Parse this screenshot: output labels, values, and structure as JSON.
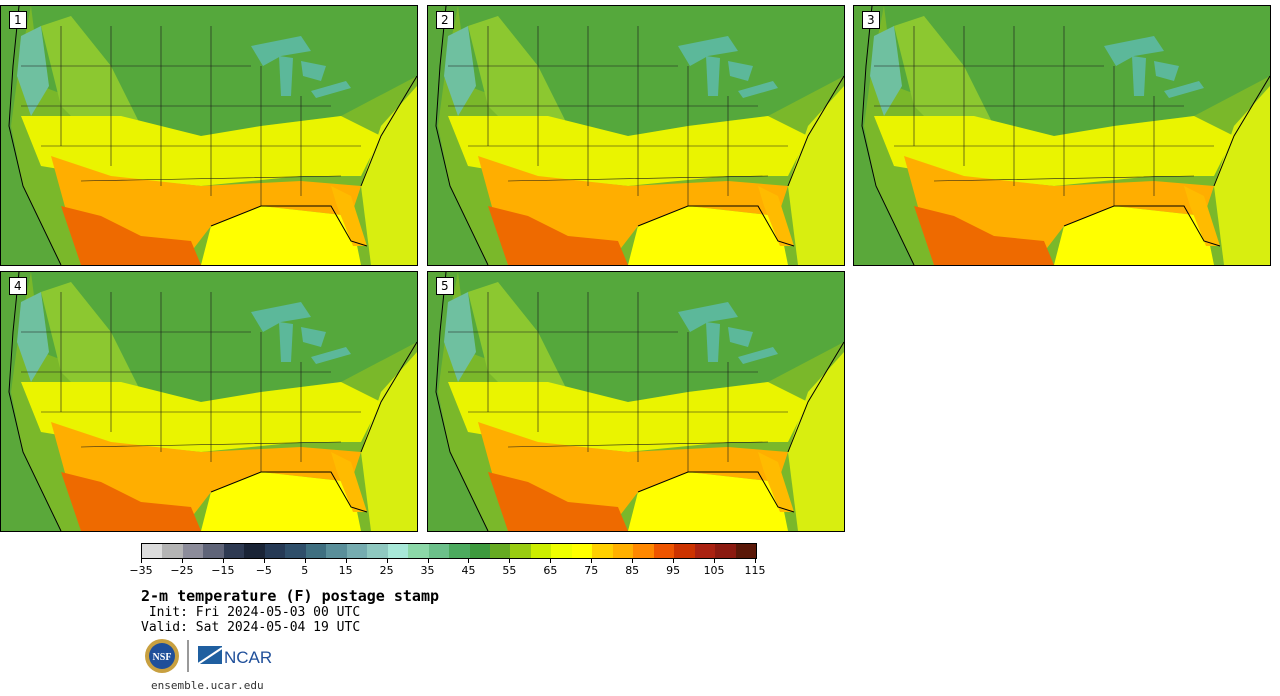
{
  "stamps": [
    {
      "label": "1"
    },
    {
      "label": "2"
    },
    {
      "label": "3"
    },
    {
      "label": "4"
    },
    {
      "label": "5"
    }
  ],
  "colorbar": {
    "colors": [
      "#dcdcdc",
      "#b4b4b4",
      "#8c8c9a",
      "#5f6478",
      "#2e3a52",
      "#1a2436",
      "#263a55",
      "#2f4f6a",
      "#3f6f80",
      "#5a8f9a",
      "#76acb0",
      "#8fc8c0",
      "#a8e8d8",
      "#8cd8a8",
      "#6cc08a",
      "#4caa5e",
      "#3d9a3d",
      "#66aa22",
      "#99cc11",
      "#ccee00",
      "#eeff00",
      "#ffff00",
      "#ffd000",
      "#ffb000",
      "#ff8800",
      "#ee5500",
      "#cc3300",
      "#aa2211",
      "#8b1a10",
      "#5a1808"
    ],
    "tick_values": [
      "-35",
      "-25",
      "-15",
      "-5",
      "5",
      "15",
      "25",
      "35",
      "45",
      "55",
      "65",
      "75",
      "85",
      "95",
      "105",
      "115"
    ]
  },
  "title": "2-m temperature (F) postage stamp",
  "init": " Init: Fri 2024-05-03 00 UTC",
  "valid": "Valid: Sat 2024-05-04 19 UTC",
  "logo_nsf": "NSF",
  "logo_ncar": "NCAR",
  "website": "ensemble.ucar.edu"
}
